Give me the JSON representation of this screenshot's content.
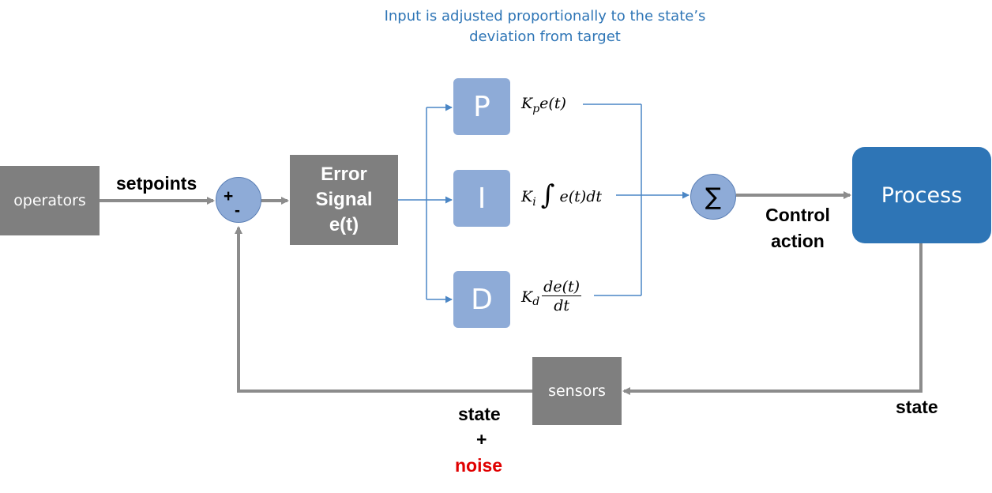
{
  "caption": "Input is adjusted proportionally to the state’s deviation from target",
  "blocks": {
    "operators": "operators",
    "error_signal": "Error\nSignal\ne(t)",
    "p": "P",
    "i": "I",
    "d": "D",
    "process": "Process",
    "sensors": "sensors"
  },
  "summing_junction": {
    "plus": "+",
    "minus": "-"
  },
  "sum_symbol": "∑",
  "formulas": {
    "p": {
      "coef": "K",
      "sub": "p",
      "expr": "e(t)"
    },
    "i": {
      "coef": "K",
      "sub": "i",
      "integral": "∫",
      "expr": "e(t)dt"
    },
    "d": {
      "coef": "K",
      "sub": "d",
      "num": "de(t)",
      "den": "dt"
    }
  },
  "labels": {
    "setpoints": "setpoints",
    "control_action": "Control\naction",
    "state_right": "state",
    "state_left": "state",
    "plus": "+",
    "noise": "noise"
  },
  "colors": {
    "gray_block": "#7f7f7f",
    "pid_block": "#8eabd7",
    "process_block": "#2e75b6",
    "caption_text": "#2e75b6",
    "noise_text": "#e00000",
    "gray_arrow": "#8c8c8c",
    "blue_line": "#4a86c5"
  }
}
